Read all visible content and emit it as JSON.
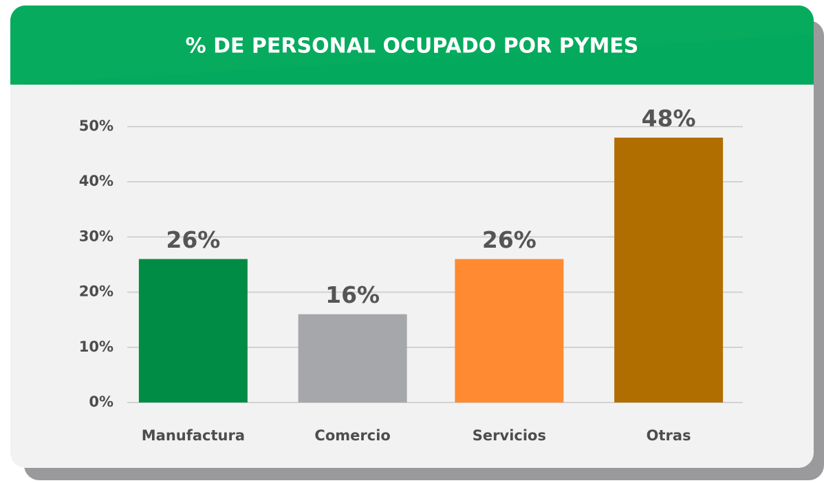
{
  "chart_data": {
    "type": "bar",
    "title": "% DE PERSONAL OCUPADO POR PYMES",
    "categories": [
      "Manufactura",
      "Comercio",
      "Servicios",
      "Otras"
    ],
    "values": [
      26,
      16,
      26,
      48
    ],
    "value_labels": [
      "26%",
      "16%",
      "26%",
      "48%"
    ],
    "colors": [
      "#008c44",
      "#a6a7ab",
      "#ff8a31",
      "#b06e00"
    ],
    "ylim": [
      0,
      50
    ],
    "yticks": [
      {
        "value": 0,
        "label": "0%"
      },
      {
        "value": 10,
        "label": "10%"
      },
      {
        "value": 20,
        "label": "20%"
      },
      {
        "value": 30,
        "label": "30%"
      },
      {
        "value": 40,
        "label": "40%"
      },
      {
        "value": 50,
        "label": "50%"
      }
    ],
    "grid": true
  }
}
